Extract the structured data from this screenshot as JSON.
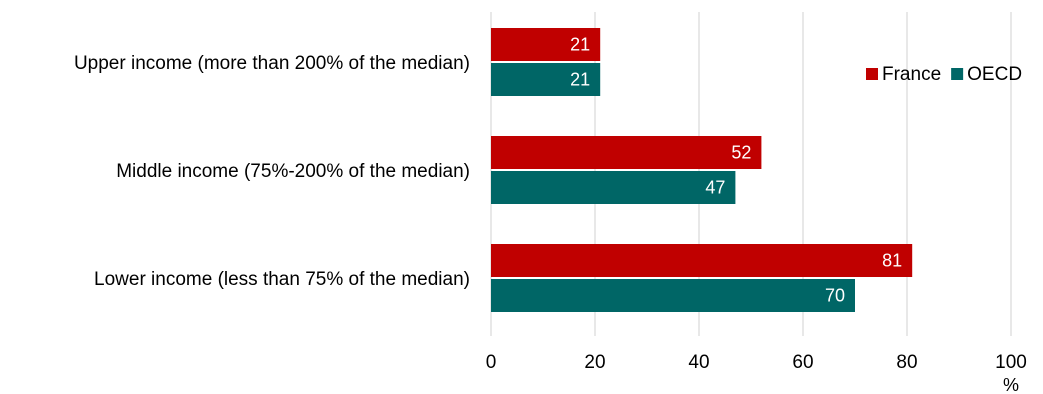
{
  "chart_data": {
    "type": "bar",
    "orientation": "horizontal",
    "categories": [
      "Upper income (more than 200% of the median)",
      "Middle income (75%-200% of the median)",
      "Lower income (less than 75% of the median)"
    ],
    "series": [
      {
        "name": "France",
        "values": [
          21,
          52,
          81
        ],
        "color": "#c00000"
      },
      {
        "name": "OECD",
        "values": [
          21,
          47,
          70
        ],
        "color": "#006666"
      }
    ],
    "x_ticks": [
      0,
      20,
      40,
      60,
      80,
      100
    ],
    "xlim": [
      0,
      100
    ],
    "x_unit": "%",
    "grid": "vertical",
    "legend_position": "top-right",
    "grid_color": "#d9d9d9"
  }
}
